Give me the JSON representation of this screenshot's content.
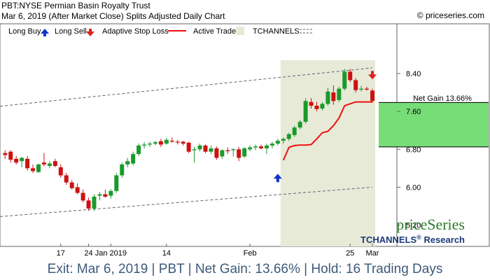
{
  "header": {
    "line1": "PBT:NYSE Permian Basin Royalty Trust",
    "line2": "Mar 6, 2019 (After Market Close)  Splits Adjusted Daily Chart",
    "copyright": "© priceseries.com"
  },
  "legend": {
    "long_buy": "Long Buy",
    "long_sell": "Long Sell",
    "adaptive_stop": "Adaptive Stop Loss",
    "active_trade": "Active Trade",
    "tchannels": "TCHANNELS"
  },
  "brand": {
    "logo": "priceSeries",
    "research": "TCHANNELS",
    "research_sup": "®",
    "research_suffix": " Research"
  },
  "gain_label": "Net Gain 13.66%",
  "footer_text": "Exit: Mar 6, 2019 | PBT | Net Gain: 13.66% | Hold: 16 Trading Days",
  "colors": {
    "up": "#1a9a2a",
    "down": "#cc1111",
    "stop": "#ee1111",
    "trade_bg": "#e8ead8",
    "gain_fill": "#77dd77",
    "channel": "#556677",
    "buy_arrow": "#1133cc",
    "sell_arrow": "#dd2222",
    "brand_green": "#2a7a2a",
    "brand_blue": "#1a3a7a"
  },
  "chart_data": {
    "type": "candlestick",
    "y_ticks": [
      "8.40",
      "7.60",
      "6.80",
      "6.00",
      "5.20"
    ],
    "ylim": [
      4.75,
      9.45
    ],
    "x_ticks": [
      {
        "label": "17",
        "index": 10
      },
      {
        "label": "24",
        "index": 15
      },
      {
        "label": "Jan 2019",
        "index": 19
      },
      {
        "label": "14",
        "index": 29
      },
      {
        "label": "Feb",
        "index": 44
      },
      {
        "label": "25",
        "index": 62
      },
      {
        "label": "Mar",
        "index": 66
      }
    ],
    "candles": [
      {
        "o": 6.72,
        "h": 6.78,
        "l": 6.6,
        "c": 6.68
      },
      {
        "o": 6.75,
        "h": 6.78,
        "l": 6.52,
        "c": 6.58
      },
      {
        "o": 6.6,
        "h": 6.66,
        "l": 6.48,
        "c": 6.52
      },
      {
        "o": 6.55,
        "h": 6.64,
        "l": 6.42,
        "c": 6.62
      },
      {
        "o": 6.6,
        "h": 6.66,
        "l": 6.35,
        "c": 6.4
      },
      {
        "o": 6.4,
        "h": 6.48,
        "l": 6.3,
        "c": 6.34
      },
      {
        "o": 6.32,
        "h": 6.5,
        "l": 6.3,
        "c": 6.48
      },
      {
        "o": 6.52,
        "h": 6.72,
        "l": 6.44,
        "c": 6.48
      },
      {
        "o": 6.45,
        "h": 6.55,
        "l": 6.4,
        "c": 6.5
      },
      {
        "o": 6.55,
        "h": 6.6,
        "l": 6.42,
        "c": 6.45
      },
      {
        "o": 6.42,
        "h": 6.48,
        "l": 6.2,
        "c": 6.25
      },
      {
        "o": 6.25,
        "h": 6.3,
        "l": 6.05,
        "c": 6.1
      },
      {
        "o": 6.1,
        "h": 6.15,
        "l": 5.95,
        "c": 5.98
      },
      {
        "o": 6.0,
        "h": 6.08,
        "l": 5.85,
        "c": 5.88
      },
      {
        "o": 5.88,
        "h": 5.95,
        "l": 5.68,
        "c": 5.72
      },
      {
        "o": 5.72,
        "h": 5.78,
        "l": 5.5,
        "c": 5.55
      },
      {
        "o": 5.55,
        "h": 5.85,
        "l": 5.5,
        "c": 5.8
      },
      {
        "o": 5.82,
        "h": 5.9,
        "l": 5.72,
        "c": 5.85
      },
      {
        "o": 5.85,
        "h": 5.95,
        "l": 5.78,
        "c": 5.8
      },
      {
        "o": 5.82,
        "h": 5.96,
        "l": 5.76,
        "c": 5.92
      },
      {
        "o": 5.92,
        "h": 6.3,
        "l": 5.88,
        "c": 6.25
      },
      {
        "o": 6.25,
        "h": 6.52,
        "l": 6.2,
        "c": 6.48
      },
      {
        "o": 6.48,
        "h": 6.62,
        "l": 6.42,
        "c": 6.55
      },
      {
        "o": 6.5,
        "h": 6.75,
        "l": 6.46,
        "c": 6.7
      },
      {
        "o": 6.7,
        "h": 6.92,
        "l": 6.66,
        "c": 6.88
      },
      {
        "o": 6.88,
        "h": 6.95,
        "l": 6.82,
        "c": 6.9
      },
      {
        "o": 6.9,
        "h": 6.96,
        "l": 6.85,
        "c": 6.92
      },
      {
        "o": 6.92,
        "h": 6.98,
        "l": 6.88,
        "c": 6.95
      },
      {
        "o": 6.97,
        "h": 7.02,
        "l": 6.85,
        "c": 6.9
      },
      {
        "o": 6.92,
        "h": 7.04,
        "l": 6.9,
        "c": 7.0
      },
      {
        "o": 6.98,
        "h": 7.05,
        "l": 6.94,
        "c": 6.96
      },
      {
        "o": 6.96,
        "h": 7.0,
        "l": 6.9,
        "c": 6.95
      },
      {
        "o": 6.96,
        "h": 6.98,
        "l": 6.88,
        "c": 6.92
      },
      {
        "o": 6.94,
        "h": 6.96,
        "l": 6.72,
        "c": 6.75
      },
      {
        "o": 6.78,
        "h": 6.85,
        "l": 6.52,
        "c": 6.8
      },
      {
        "o": 6.8,
        "h": 6.92,
        "l": 6.76,
        "c": 6.88
      },
      {
        "o": 6.88,
        "h": 6.9,
        "l": 6.72,
        "c": 6.75
      },
      {
        "o": 6.75,
        "h": 6.88,
        "l": 6.7,
        "c": 6.82
      },
      {
        "o": 6.82,
        "h": 6.86,
        "l": 6.58,
        "c": 6.62
      },
      {
        "o": 6.65,
        "h": 6.8,
        "l": 6.6,
        "c": 6.78
      },
      {
        "o": 6.78,
        "h": 6.84,
        "l": 6.7,
        "c": 6.76
      },
      {
        "o": 6.78,
        "h": 6.82,
        "l": 6.65,
        "c": 6.8
      },
      {
        "o": 6.8,
        "h": 6.85,
        "l": 6.55,
        "c": 6.62
      },
      {
        "o": 6.65,
        "h": 6.85,
        "l": 6.62,
        "c": 6.82
      },
      {
        "o": 6.8,
        "h": 6.88,
        "l": 6.76,
        "c": 6.84
      },
      {
        "o": 6.84,
        "h": 6.9,
        "l": 6.78,
        "c": 6.86
      },
      {
        "o": 6.86,
        "h": 6.9,
        "l": 6.8,
        "c": 6.82
      },
      {
        "o": 6.82,
        "h": 6.92,
        "l": 6.7,
        "c": 6.88
      },
      {
        "o": 6.88,
        "h": 6.96,
        "l": 6.82,
        "c": 6.92
      },
      {
        "o": 6.92,
        "h": 7.02,
        "l": 6.88,
        "c": 6.98
      },
      {
        "o": 6.98,
        "h": 7.05,
        "l": 6.92,
        "c": 7.02
      },
      {
        "o": 7.02,
        "h": 7.15,
        "l": 6.98,
        "c": 7.12
      },
      {
        "o": 7.1,
        "h": 7.3,
        "l": 7.06,
        "c": 7.26
      },
      {
        "o": 7.26,
        "h": 7.42,
        "l": 7.22,
        "c": 7.38
      },
      {
        "o": 7.38,
        "h": 7.88,
        "l": 7.34,
        "c": 7.82
      },
      {
        "o": 7.8,
        "h": 7.88,
        "l": 7.66,
        "c": 7.72
      },
      {
        "o": 7.72,
        "h": 7.8,
        "l": 7.6,
        "c": 7.65
      },
      {
        "o": 7.66,
        "h": 7.8,
        "l": 7.62,
        "c": 7.76
      },
      {
        "o": 7.76,
        "h": 8.1,
        "l": 7.72,
        "c": 8.02
      },
      {
        "o": 8.0,
        "h": 8.15,
        "l": 7.74,
        "c": 7.82
      },
      {
        "o": 7.84,
        "h": 8.12,
        "l": 7.8,
        "c": 8.08
      },
      {
        "o": 8.08,
        "h": 8.5,
        "l": 8.04,
        "c": 8.44
      },
      {
        "o": 8.44,
        "h": 8.5,
        "l": 8.22,
        "c": 8.26
      },
      {
        "o": 8.26,
        "h": 8.3,
        "l": 8.0,
        "c": 8.05
      },
      {
        "o": 8.06,
        "h": 8.14,
        "l": 8.02,
        "c": 8.08
      },
      {
        "o": 8.08,
        "h": 8.12,
        "l": 8.04,
        "c": 8.06
      },
      {
        "o": 8.04,
        "h": 8.08,
        "l": 7.78,
        "c": 7.82
      }
    ],
    "stop_loss": [
      {
        "i": 50,
        "v": 6.57
      },
      {
        "i": 51,
        "v": 6.84
      },
      {
        "i": 52,
        "v": 6.88
      },
      {
        "i": 53,
        "v": 6.89
      },
      {
        "i": 54,
        "v": 6.89
      },
      {
        "i": 55,
        "v": 6.9
      },
      {
        "i": 56,
        "v": 7.02
      },
      {
        "i": 57,
        "v": 7.15
      },
      {
        "i": 58,
        "v": 7.18
      },
      {
        "i": 59,
        "v": 7.3
      },
      {
        "i": 60,
        "v": 7.46
      },
      {
        "i": 61,
        "v": 7.72
      },
      {
        "i": 62,
        "v": 7.76
      },
      {
        "i": 63,
        "v": 7.8
      },
      {
        "i": 64,
        "v": 7.8
      },
      {
        "i": 65,
        "v": 7.8
      },
      {
        "i": 66,
        "v": 7.8
      }
    ],
    "channel_upper": [
      {
        "i": 0,
        "v": 7.71
      },
      {
        "i": 66,
        "v": 8.52
      }
    ],
    "channel_lower": [
      {
        "i": 0,
        "v": 5.38
      },
      {
        "i": 66,
        "v": 6.0
      }
    ],
    "active_trade": {
      "start_index": 50,
      "end_index": 66
    },
    "buy_signal": {
      "index": 49,
      "value": 6.18
    },
    "sell_signal": {
      "index": 66,
      "value": 8.38
    },
    "trade_entry": 6.85,
    "trade_exit": 7.79,
    "net_gain_percent": 13.66
  }
}
